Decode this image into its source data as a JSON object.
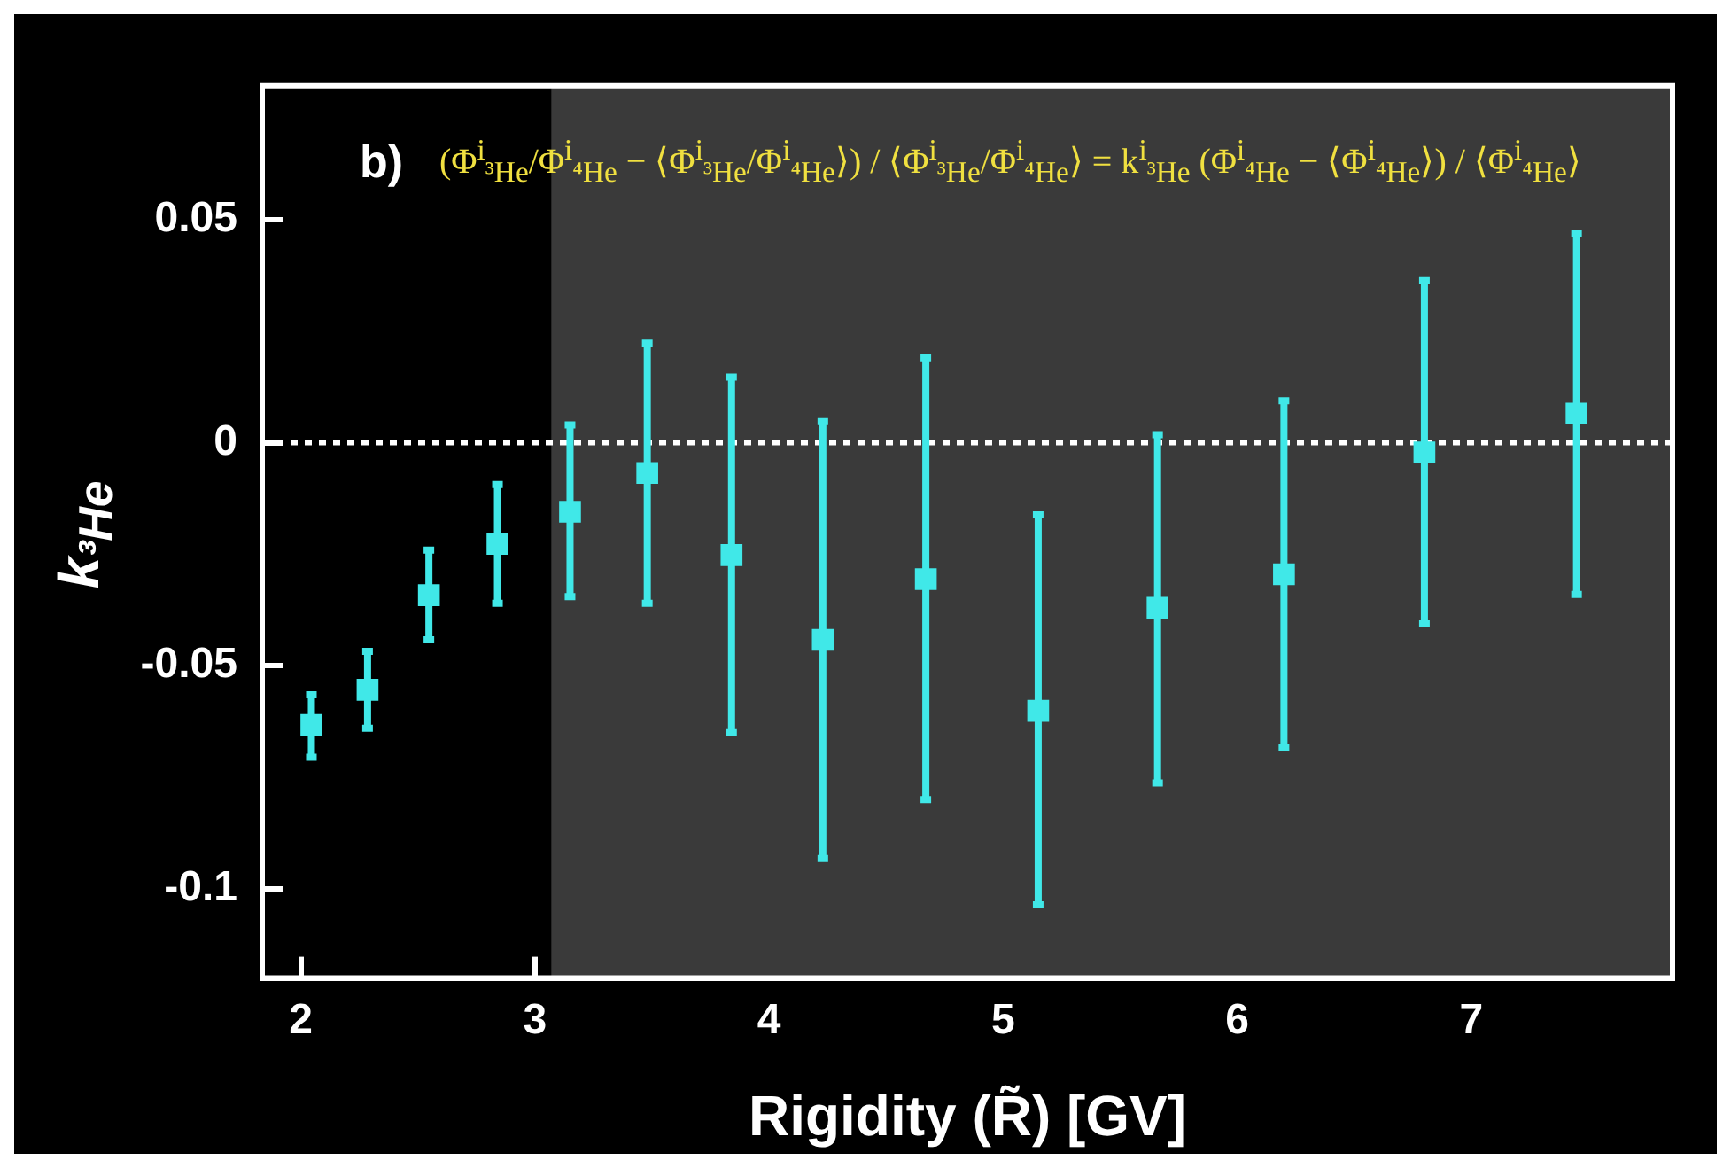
{
  "chart_data": {
    "type": "scatter",
    "xlabel": "Rigidity (R̃) [GV]",
    "ylabel": "k$_{³He}$",
    "annotations": [
      "b)",
      "(Φ$^{i}$$_{³He}$/Φ$^{i}$$_{⁴He}$ − ⟨Φ$^{i}$$_{³He}$/Φ$^{i}$$_{⁴He}$⟩) / ⟨Φ$^{i}$$_{³He}$/Φ$^{i}$$_{⁴He}$⟩ = k$^{i}$$_{³He}$ (Φ$^{i}$$_{⁴He}$ − ⟨Φ$^{i}$$_{⁴He}$⟩) / ⟨Φ$^{i}$$_{⁴He}$⟩"
    ],
    "series": [
      {
        "color": "#40e8e8",
        "x": [
          2.045,
          2.285,
          2.547,
          2.84,
          3.15,
          3.48,
          3.84,
          4.23,
          4.67,
          5.15,
          5.66,
          6.2,
          6.8,
          7.45
        ],
        "values": [
          -0.0633,
          -0.0554,
          -0.0342,
          -0.0227,
          -0.0155,
          -0.0068,
          -0.0252,
          -0.0442,
          -0.0306,
          -0.0601,
          -0.037,
          -0.0295,
          -0.0022,
          0.0065
        ],
        "errors": [
          [
            -0.0705,
            -0.0565
          ],
          [
            -0.064,
            -0.0468
          ],
          [
            -0.0442,
            -0.0241
          ],
          [
            -0.036,
            -0.0094
          ],
          [
            -0.0345,
            0.004
          ],
          [
            -0.036,
            0.0223
          ],
          [
            -0.065,
            0.0147
          ],
          [
            -0.0932,
            0.0047
          ],
          [
            -0.08,
            0.019
          ],
          [
            -0.1036,
            -0.0162
          ],
          [
            -0.0763,
            0.0018
          ],
          [
            -0.0683,
            0.0094
          ],
          [
            -0.0406,
            0.0363
          ],
          [
            -0.034,
            0.047
          ]
        ]
      }
    ],
    "marker": "square",
    "xlim": [
      1.835,
      7.86
    ],
    "ylim": [
      -0.12,
      0.08
    ],
    "xticks": [
      2,
      3,
      4,
      5,
      6,
      7
    ],
    "yticks": [
      {
        "value": -0.1,
        "label": "-0.1"
      },
      {
        "value": -0.05,
        "label": "-0.05"
      },
      {
        "value": 0,
        "label": "0"
      },
      {
        "value": 0.05,
        "label": "0.05"
      }
    ],
    "grid": false,
    "legend": false,
    "ref_lines": [
      {
        "axis": "y",
        "value": 0,
        "color": "#ffffff",
        "line_style": "dotted"
      }
    ],
    "bands": [
      {
        "axis": "x",
        "from": 3.07,
        "to": 7.86,
        "color": "#3a3a3a"
      }
    ]
  }
}
